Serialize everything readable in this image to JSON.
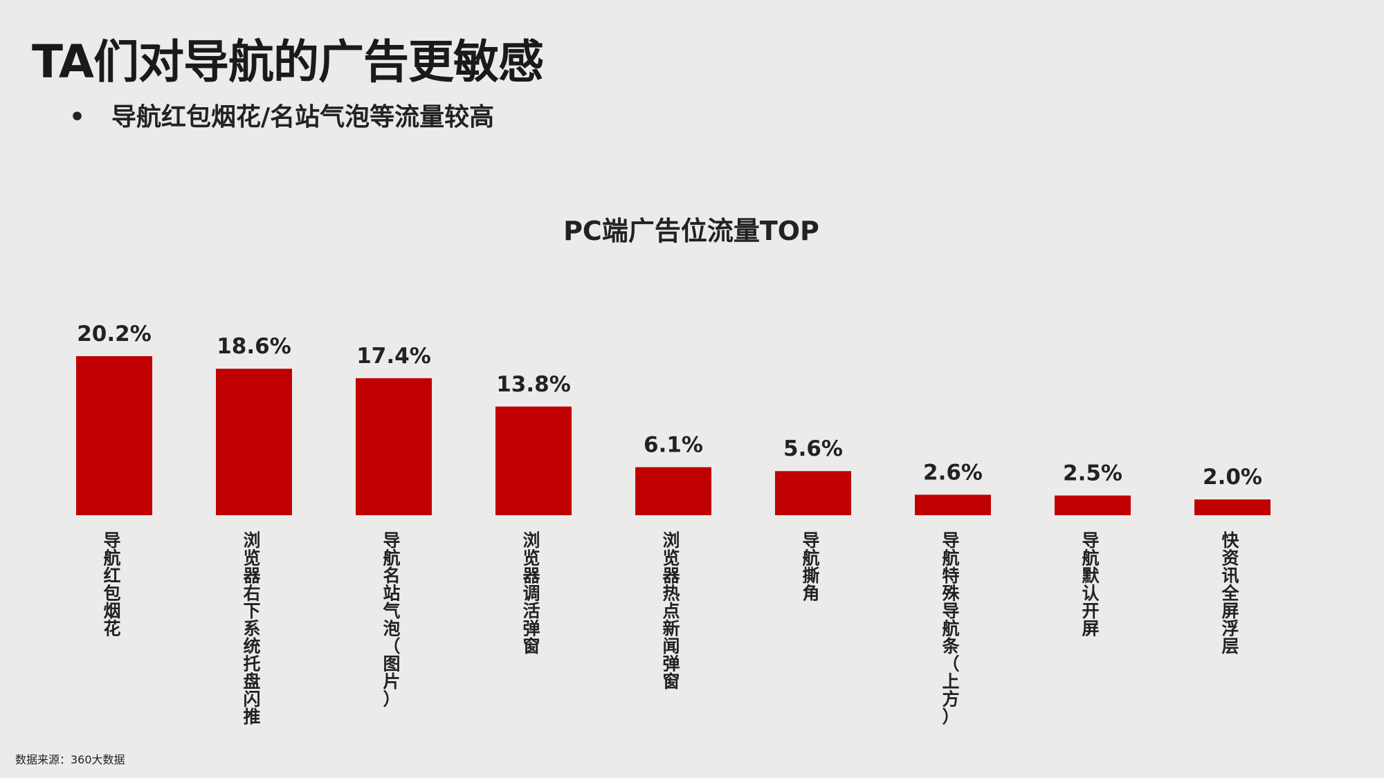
{
  "slide": {
    "title": "TA们对导航的广告更敏感",
    "bullet": "导航红包烟花/名站气泡等流量较高",
    "source": "数据来源：360大数据"
  },
  "colors": {
    "bar": "#c00000",
    "background": "#ebebeb",
    "text": "#222222"
  },
  "chart_data": {
    "type": "bar",
    "title": "PC端广告位流量TOP",
    "xlabel": "",
    "ylabel": "",
    "categories": [
      "导航红包烟花",
      "浏览器右下系统托盘闪推",
      "导航名站气泡（图片）",
      "浏览器调活弹窗",
      "浏览器热点新闻弹窗",
      "导航撕角",
      "导航特殊导航条（上方）",
      "导航默认开屏",
      "快资讯全屏浮层"
    ],
    "values": [
      20.2,
      18.6,
      17.4,
      13.8,
      6.1,
      5.6,
      2.6,
      2.5,
      2.0
    ],
    "value_labels": [
      "20.2%",
      "18.6%",
      "17.4%",
      "13.8%",
      "6.1%",
      "5.6%",
      "2.6%",
      "2.5%",
      "2.0%"
    ],
    "unit": "%",
    "ylim": [
      0,
      20.2
    ],
    "grid": false,
    "legend": "none"
  }
}
